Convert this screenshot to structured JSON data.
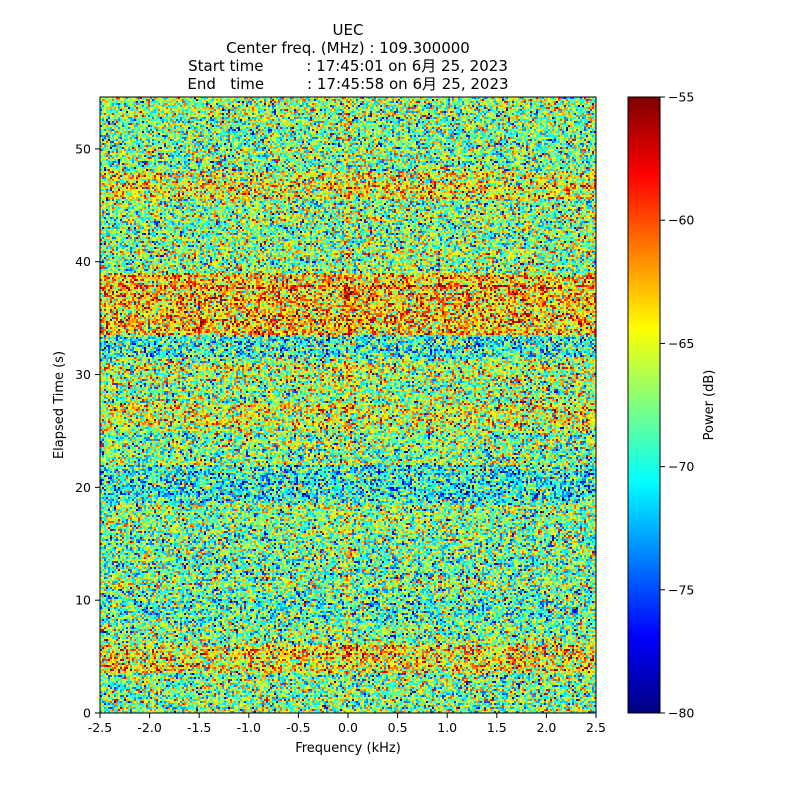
{
  "chart_data": {
    "type": "heatmap",
    "title_lines": [
      "UEC",
      "Center freq. (MHz) : 109.300000",
      "Start time         : 17:45:01 on 6月 25, 2023",
      "End   time         : 17:45:58 on 6月 25, 2023"
    ],
    "xlabel": "Frequency (kHz)",
    "ylabel": "Elapsed Time (s)",
    "xlim": [
      -2.5,
      2.5
    ],
    "ylim": [
      0,
      54.6
    ],
    "x_ticks": [
      -2.5,
      -2.0,
      -1.5,
      -1.0,
      -0.5,
      0.0,
      0.5,
      1.0,
      1.5,
      2.0,
      2.5
    ],
    "x_tick_labels": [
      "-2.5",
      "-2.0",
      "-1.5",
      "-1.0",
      "-0.5",
      "0.0",
      "0.5",
      "1.0",
      "1.5",
      "2.0",
      "2.5"
    ],
    "y_ticks": [
      0,
      10,
      20,
      30,
      40,
      50
    ],
    "y_tick_labels": [
      "0",
      "10",
      "20",
      "30",
      "40",
      "50"
    ],
    "colorbar": {
      "label": "Power (dB)",
      "range": [
        -80,
        -55
      ],
      "ticks": [
        -80,
        -75,
        -70,
        -65,
        -60,
        -55
      ],
      "tick_labels": [
        "−80",
        "−75",
        "−70",
        "−65",
        "−60",
        "−55"
      ],
      "colormap": "jet"
    },
    "grid": false,
    "background_mean_db": -67.5,
    "noise_std_db": 4.2,
    "enhanced_bands": [
      {
        "t_start": 3.5,
        "t_end": 6.0,
        "boost_db": 3.5
      },
      {
        "t_start": 25.0,
        "t_end": 27.5,
        "boost_db": 2.5
      },
      {
        "t_start": 29.5,
        "t_end": 31.0,
        "boost_db": 1.5
      },
      {
        "t_start": 33.5,
        "t_end": 39.0,
        "boost_db": 4.5
      },
      {
        "t_start": 45.5,
        "t_end": 48.0,
        "boost_db": 3.0
      }
    ],
    "quiet_bands": [
      {
        "t_start": 8.0,
        "t_end": 11.0,
        "drop_db": 1.5
      },
      {
        "t_start": 18.5,
        "t_end": 22.0,
        "drop_db": 2.5
      },
      {
        "t_start": 31.5,
        "t_end": 33.5,
        "drop_db": 2.0
      }
    ],
    "carrier": {
      "freq_khz": 0.0,
      "boost_db": 2.5
    }
  }
}
